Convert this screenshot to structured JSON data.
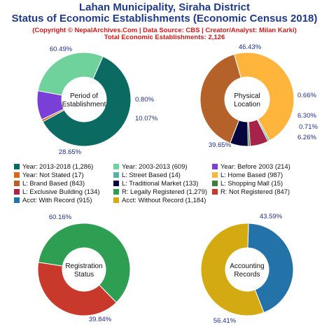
{
  "header": {
    "title_line1": "Lahan Municipality, Siraha District",
    "title_line2": "Status of Economic Establishments (Economic Census 2018)",
    "copyright": "(Copyright © NepalArchives.Com | Data Source: CBS | Creator/Analyst: Milan Karki)",
    "total": "Total Economic Establishments: 2,126"
  },
  "chart_data": [
    {
      "type": "pie",
      "donut": true,
      "center_label": [
        "Period of",
        "Establishment"
      ],
      "slices": [
        {
          "label": "Year: 2013-2018",
          "value": 1286,
          "percent_label": "60.49%",
          "color": "#0b6b63"
        },
        {
          "label": "Year: Not Stated",
          "value": 17,
          "percent_label": "0.80%",
          "color": "#d2691e"
        },
        {
          "label": "Year: Before 2003",
          "value": 214,
          "percent_label": "10.07%",
          "color": "#7a3fd6"
        },
        {
          "label": "Year: 2003-2013",
          "value": 609,
          "percent_label": "28.65%",
          "color": "#6fd19c"
        }
      ]
    },
    {
      "type": "pie",
      "donut": true,
      "center_label": [
        "Physical",
        "Location"
      ],
      "slices": [
        {
          "label": "L: Home Based",
          "value": 987,
          "percent_label": "46.43%",
          "color": "#ffb53b"
        },
        {
          "label": "L: Street Based",
          "value": 14,
          "percent_label": "0.66%",
          "color": "#5ab0a8"
        },
        {
          "label": "L: Exclusive Building",
          "value": 134,
          "percent_label": "6.30%",
          "color": "#a8234a"
        },
        {
          "label": "L: Shopping Mall",
          "value": 15,
          "percent_label": "0.71%",
          "color": "#3b7f3b"
        },
        {
          "label": "L: Traditional Market",
          "value": 133,
          "percent_label": "6.26%",
          "color": "#06063e"
        },
        {
          "label": "L: Brand Based",
          "value": 843,
          "percent_label": "39.65%",
          "color": "#b5612a"
        }
      ]
    },
    {
      "type": "pie",
      "donut": true,
      "center_label": [
        "Registration",
        "Status"
      ],
      "slices": [
        {
          "label": "R: Legally Registered",
          "value": 1279,
          "percent_label": "60.16%",
          "color": "#2e9e52"
        },
        {
          "label": "R: Not Registered",
          "value": 847,
          "percent_label": "39.84%",
          "color": "#c8382b"
        }
      ]
    },
    {
      "type": "pie",
      "donut": true,
      "center_label": [
        "Accounting",
        "Records"
      ],
      "slices": [
        {
          "label": "Acct: With Record",
          "value": 915,
          "percent_label": "43.59%",
          "color": "#2473a8"
        },
        {
          "label": "Acct: Without Record",
          "value": 1184,
          "percent_label": "56.41%",
          "color": "#d4aa12"
        }
      ]
    }
  ],
  "legend": [
    {
      "text": "Year: 2013-2018 (1,286)",
      "color": "#0b6b63"
    },
    {
      "text": "Year: 2003-2013 (609)",
      "color": "#6fd19c"
    },
    {
      "text": "Year: Before 2003 (214)",
      "color": "#7a3fd6"
    },
    {
      "text": "Year: Not Stated (17)",
      "color": "#d2691e"
    },
    {
      "text": "L: Street Based (14)",
      "color": "#5ab0a8"
    },
    {
      "text": "L: Home Based (987)",
      "color": "#ffb53b"
    },
    {
      "text": "L: Brand Based (843)",
      "color": "#b5612a"
    },
    {
      "text": "L: Traditional Market (133)",
      "color": "#06063e"
    },
    {
      "text": "L: Shopping Mall (15)",
      "color": "#3b7f3b"
    },
    {
      "text": "L: Exclusive Building (134)",
      "color": "#a8234a"
    },
    {
      "text": "R: Legally Registered (1,279)",
      "color": "#2e9e52"
    },
    {
      "text": "R: Not Registered (847)",
      "color": "#c8382b"
    },
    {
      "text": "Acct: With Record (915)",
      "color": "#2473a8"
    },
    {
      "text": "Acct: Without Record (1,184)",
      "color": "#d4aa12"
    }
  ]
}
